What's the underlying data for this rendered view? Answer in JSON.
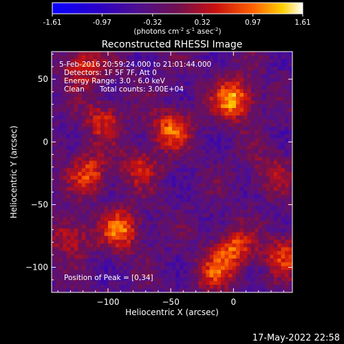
{
  "colorbar": {
    "tick_labels": [
      "-1.61",
      "-0.97",
      "-0.32",
      "0.32",
      "0.97",
      "1.61"
    ],
    "tick_values": [
      -1.61,
      -0.97,
      -0.32,
      0.32,
      0.97,
      1.61
    ],
    "range": [
      -1.61,
      1.61
    ],
    "unit_label_parts": [
      "(photons cm",
      "-2",
      " s",
      "-1",
      " asec",
      "-2",
      ")"
    ]
  },
  "chart_data": {
    "type": "heatmap",
    "title": "Reconstructed RHESSI Image",
    "xlabel": "Heliocentric X (arcsec)",
    "ylabel": "Heliocentric Y (arcsec)",
    "xlim": [
      -145,
      47
    ],
    "ylim": [
      -120,
      72
    ],
    "x_ticks": [
      -100,
      -50,
      0
    ],
    "x_tick_labels": [
      "−100",
      "−50",
      "0"
    ],
    "y_ticks": [
      -100,
      -50,
      0,
      50
    ],
    "y_tick_labels": [
      "−100",
      "−50",
      "0",
      "50"
    ],
    "colormap": "rhessi-blue-purple-red-yellow-white",
    "colorbar_range": [
      -1.61,
      1.61
    ],
    "peak_position": [
      0,
      34
    ],
    "sources": [
      {
        "x": 0,
        "y": 34,
        "amplitude": 1.6
      },
      {
        "x": -50,
        "y": 10,
        "amplitude": 1.2
      },
      {
        "x": -120,
        "y": 60,
        "amplitude": 1.0
      },
      {
        "x": -105,
        "y": 17,
        "amplitude": 0.9
      },
      {
        "x": -75,
        "y": -20,
        "amplitude": 0.8
      },
      {
        "x": -115,
        "y": -25,
        "amplitude": 1.1
      },
      {
        "x": -90,
        "y": -70,
        "amplitude": 1.3
      },
      {
        "x": -130,
        "y": -75,
        "amplitude": 0.9
      },
      {
        "x": 0,
        "y": -85,
        "amplitude": 1.2
      },
      {
        "x": 40,
        "y": -90,
        "amplitude": 1.0
      },
      {
        "x": 30,
        "y": -25,
        "amplitude": 0.7
      },
      {
        "x": -15,
        "y": -105,
        "amplitude": 0.9
      }
    ]
  },
  "annotations": {
    "time_range": "5-Feb-2016 20:59:24.000 to 21:01:44.000",
    "detectors": "Detectors: 1F 5F 7F, Att 0",
    "energy_range": "Energy Range: 3.0 - 6.0 keV",
    "method": "Clean",
    "total_counts": "Total counts: 3.00E+04",
    "peak_position_text": "Position of Peak = [0,34]"
  },
  "footer": {
    "timestamp": "17-May-2022 22:58"
  }
}
